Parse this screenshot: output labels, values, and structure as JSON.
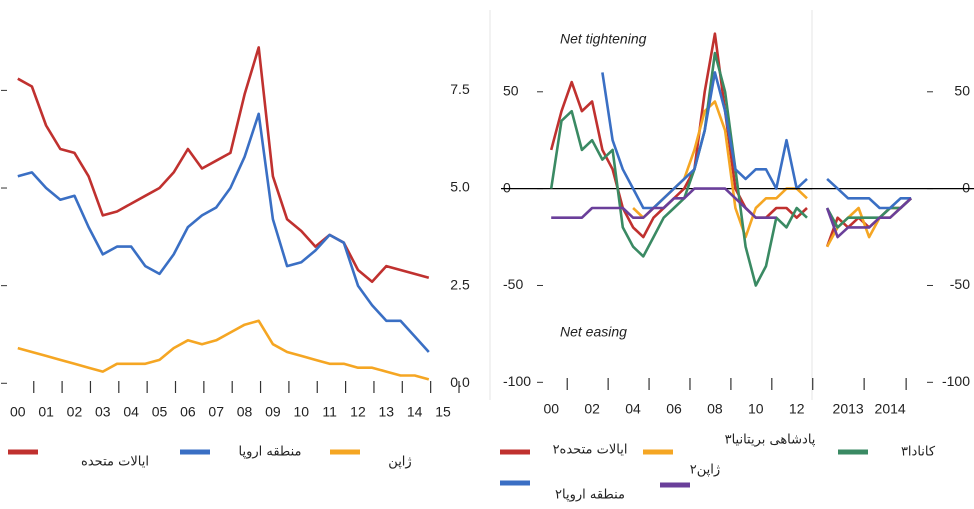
{
  "chart_data": [
    {
      "type": "line",
      "x": [
        0,
        0.5,
        1,
        1.5,
        2,
        2.5,
        3,
        3.5,
        4,
        4.5,
        5,
        5.5,
        6,
        6.5,
        7,
        7.5,
        8,
        8.5,
        9,
        9.5,
        10,
        10.5,
        11,
        11.5,
        12,
        12.5,
        13,
        13.5,
        14,
        14.5
      ],
      "series": [
        {
          "name": "ایالات متحده",
          "color": "#c0312f",
          "values": [
            7.8,
            7.6,
            6.6,
            6.0,
            5.9,
            5.3,
            4.3,
            4.4,
            4.6,
            4.8,
            5.0,
            5.4,
            6.0,
            5.5,
            5.7,
            5.9,
            7.4,
            8.6,
            5.3,
            4.2,
            3.9,
            3.5,
            3.8,
            3.6,
            2.9,
            2.6,
            3.0,
            2.9,
            2.8,
            2.7
          ]
        },
        {
          "name": "منطقه اروپا",
          "color": "#3a6fc4",
          "values": [
            5.3,
            5.4,
            5.0,
            4.7,
            4.8,
            4.0,
            3.3,
            3.5,
            3.5,
            3.0,
            2.8,
            3.3,
            4.0,
            4.3,
            4.5,
            5.0,
            5.8,
            6.9,
            4.2,
            3.0,
            3.1,
            3.4,
            3.8,
            3.6,
            2.5,
            2.0,
            1.6,
            1.6,
            1.2,
            0.8
          ]
        },
        {
          "name": "ژاپن",
          "color": "#f5a623",
          "values": [
            0.9,
            0.8,
            0.7,
            0.6,
            0.5,
            0.4,
            0.3,
            0.5,
            0.5,
            0.5,
            0.6,
            0.9,
            1.1,
            1.0,
            1.1,
            1.3,
            1.5,
            1.6,
            1.0,
            0.8,
            0.7,
            0.6,
            0.5,
            0.5,
            0.4,
            0.4,
            0.3,
            0.2,
            0.2,
            0.1
          ]
        }
      ],
      "xlim": [
        -0.45,
        15
      ],
      "ylim": [
        -0.3,
        9.2
      ],
      "xticks": [
        {
          "value": 0,
          "label": "00"
        },
        {
          "value": 1,
          "label": "01"
        },
        {
          "value": 2,
          "label": "02"
        },
        {
          "value": 3,
          "label": "03"
        },
        {
          "value": 4,
          "label": "04"
        },
        {
          "value": 5,
          "label": "05"
        },
        {
          "value": 6,
          "label": "06"
        },
        {
          "value": 7,
          "label": "07"
        },
        {
          "value": 8,
          "label": "08"
        },
        {
          "value": 9,
          "label": "09"
        },
        10,
        11,
        12,
        13,
        14,
        15
      ],
      "yticks": [
        {
          "value": 0,
          "label": "0.0"
        },
        2.5,
        {
          "value": 5,
          "label": "5.0"
        },
        7.5
      ]
    },
    {
      "type": "line",
      "x": [
        0,
        0.5,
        1,
        1.5,
        2,
        2.5,
        3,
        3.5,
        4,
        4.5,
        5,
        5.5,
        6,
        6.5,
        7,
        7.5,
        8,
        8.5,
        9,
        9.5,
        10,
        10.5,
        11,
        11.5,
        12,
        12.5
      ],
      "series": [
        {
          "name": "ایالات متحده۲",
          "color": "#c0312f",
          "values": [
            20,
            40,
            55,
            40,
            45,
            20,
            10,
            -10,
            -20,
            -25,
            -15,
            -10,
            -5,
            0,
            10,
            50,
            80,
            40,
            0,
            -10,
            -15,
            -15,
            -10,
            -10,
            -15,
            -10
          ]
        },
        {
          "name": "پادشاهی بریتانیا۳",
          "color": "#f5a623",
          "values": [
            null,
            null,
            null,
            null,
            null,
            null,
            null,
            null,
            -10,
            -15,
            -10,
            -5,
            0,
            5,
            20,
            40,
            45,
            30,
            -10,
            -25,
            -10,
            -5,
            -5,
            0,
            0,
            -5
          ]
        },
        {
          "name": "کانادا۳",
          "color": "#3a8a63",
          "values": [
            0,
            35,
            40,
            20,
            25,
            15,
            20,
            -20,
            -30,
            -35,
            -25,
            -15,
            -10,
            -5,
            10,
            30,
            70,
            50,
            10,
            -30,
            -50,
            -40,
            -15,
            -20,
            -10,
            -15
          ]
        },
        {
          "name": "منطقه اروپا۲",
          "color": "#3a6fc4",
          "values": [
            null,
            null,
            null,
            null,
            null,
            60,
            25,
            10,
            0,
            -10,
            -10,
            -5,
            0,
            5,
            10,
            30,
            60,
            40,
            10,
            5,
            10,
            10,
            0,
            25,
            0,
            5
          ]
        },
        {
          "name": "ژاپن۲",
          "color": "#6a3f9a",
          "values": [
            -15,
            -15,
            -15,
            -15,
            -10,
            -10,
            -10,
            -10,
            -15,
            -15,
            -10,
            -10,
            -5,
            -5,
            0,
            0,
            0,
            0,
            -5,
            -10,
            -15,
            -15,
            -15,
            null,
            null,
            null
          ]
        }
      ],
      "annotations": [
        "Net tightening",
        "Net easing"
      ],
      "zero_line": true,
      "xlim": [
        -0.5,
        12.6
      ],
      "ylim": [
        -105,
        85
      ],
      "xticks": [
        {
          "value": 0,
          "label": "00"
        },
        {
          "value": 2,
          "label": "02"
        },
        {
          "value": 4,
          "label": "04"
        },
        {
          "value": 6,
          "label": "06"
        },
        {
          "value": 8,
          "label": "08"
        },
        10,
        12
      ],
      "yticks": [
        -100,
        -50,
        0,
        50
      ]
    },
    {
      "type": "line",
      "x": [
        2012.5,
        2012.75,
        2013,
        2013.25,
        2013.5,
        2013.75,
        2014,
        2014.25,
        2014.5
      ],
      "series": [
        {
          "color": "#c0312f",
          "values": [
            -30,
            -15,
            -20,
            -15,
            -20,
            -15,
            -10,
            -10,
            -5
          ]
        },
        {
          "color": "#f5a623",
          "values": [
            -30,
            -20,
            -15,
            -10,
            -25,
            -15,
            -15,
            -10,
            -5
          ]
        },
        {
          "color": "#3a8a63",
          "values": [
            -10,
            -20,
            -15,
            -15,
            -15,
            -15,
            -10,
            -10,
            -5
          ]
        },
        {
          "color": "#3a6fc4",
          "values": [
            5,
            0,
            -5,
            -5,
            -5,
            -10,
            -10,
            -5,
            -5
          ]
        },
        {
          "color": "#6a3f9a",
          "values": [
            -10,
            -25,
            -20,
            -20,
            -20,
            -15,
            -15,
            -10,
            -5
          ]
        }
      ],
      "zero_line": true,
      "xlim": [
        2012.33,
        2014.83
      ],
      "ylim": [
        -105,
        85
      ],
      "xticks": [
        2013,
        2014
      ],
      "yticks": [
        -100,
        -50,
        0,
        50
      ]
    }
  ]
}
